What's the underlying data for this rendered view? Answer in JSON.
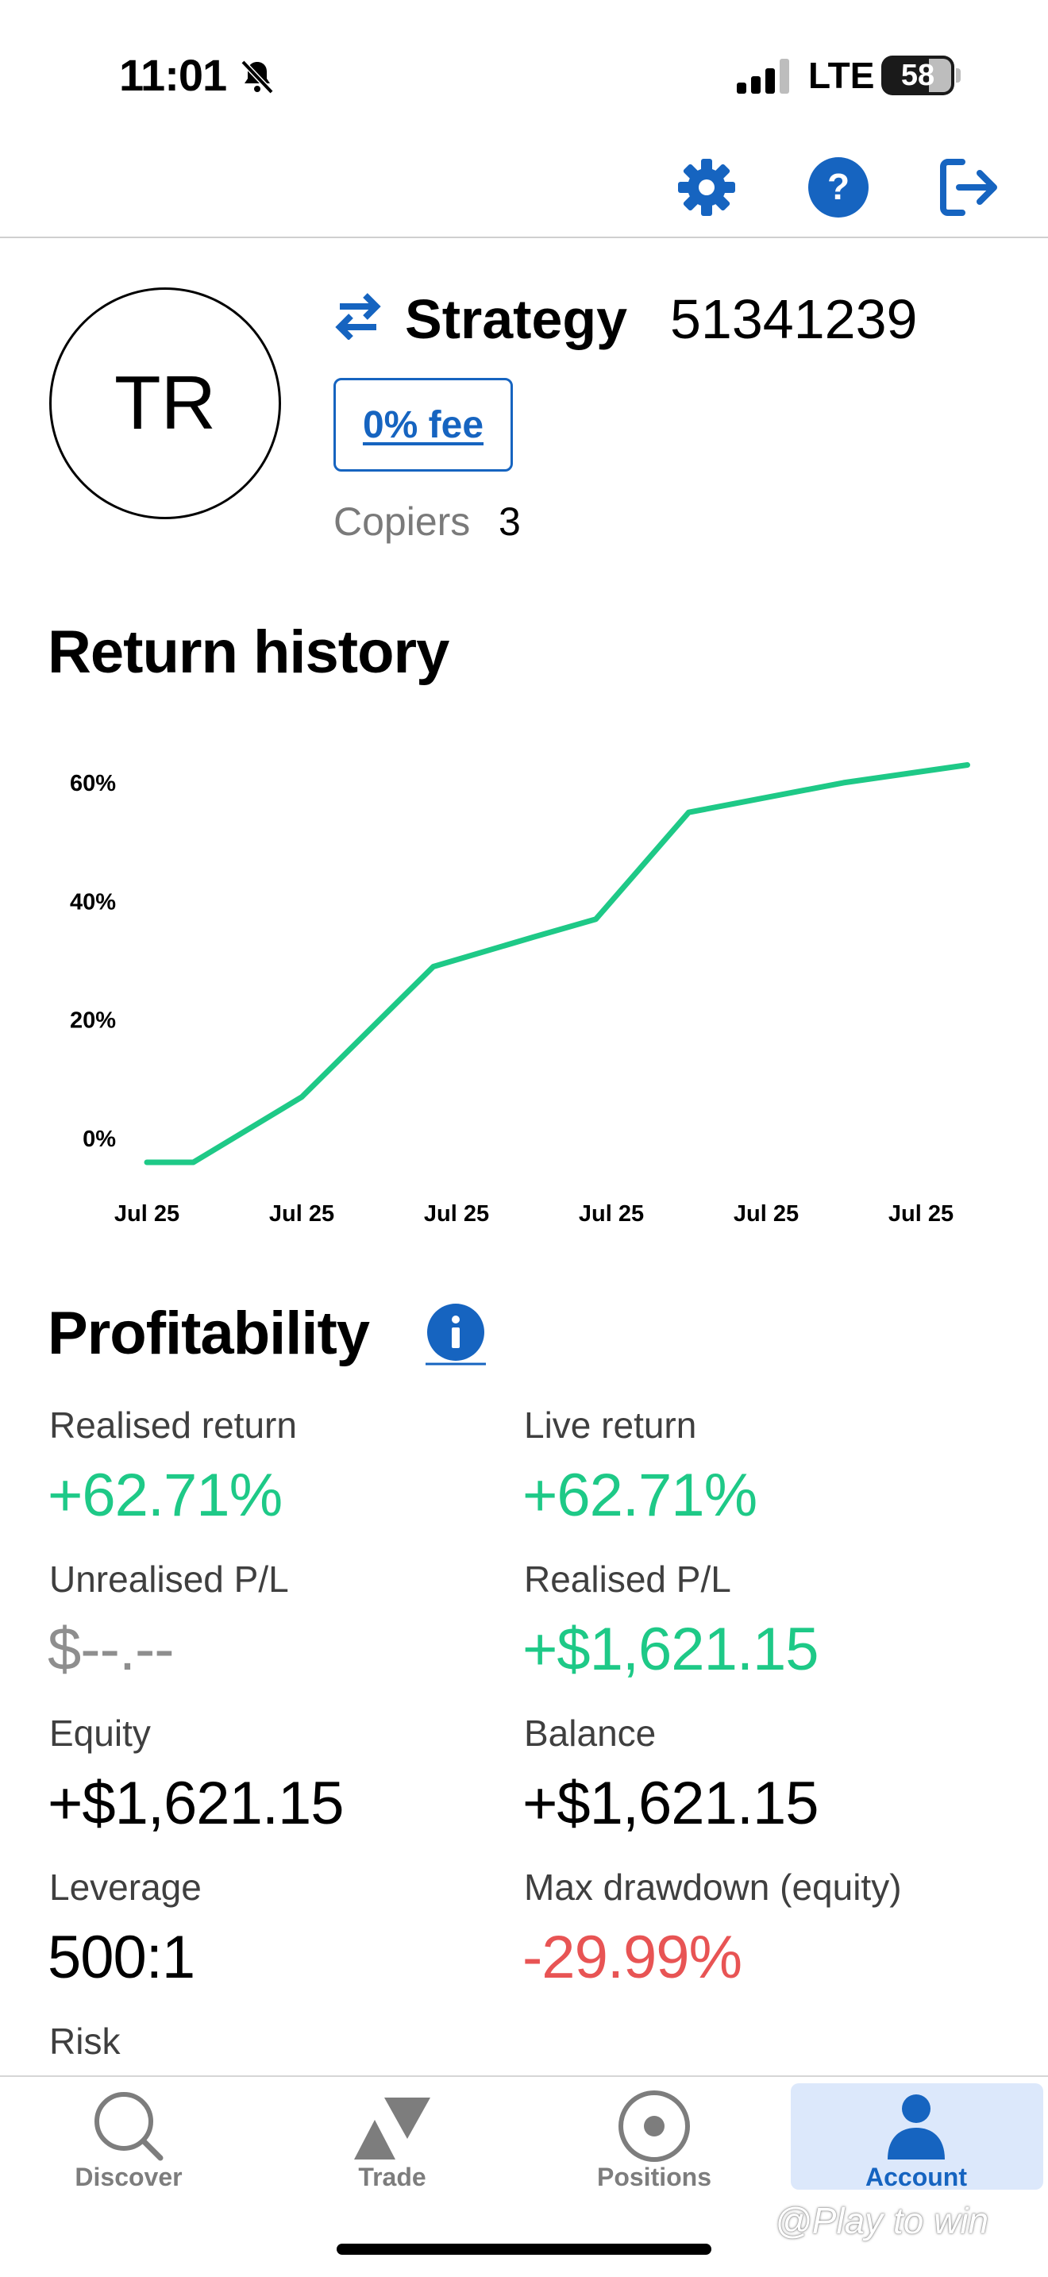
{
  "status_bar": {
    "time": "11:01",
    "network": "LTE",
    "battery_level": "58"
  },
  "header": {
    "icons": [
      "gear-icon",
      "help-icon",
      "logout-icon"
    ]
  },
  "profile": {
    "avatar_initials": "TR",
    "strategy_label": "Strategy",
    "strategy_id": "51341239",
    "fee_label": "0% fee",
    "copiers_label": "Copiers",
    "copiers_count": "3"
  },
  "return_history": {
    "title": "Return history"
  },
  "chart_data": {
    "type": "line",
    "title": "Return history",
    "y_tick_labels": [
      "60%",
      "40%",
      "20%",
      "0%"
    ],
    "x_tick_labels": [
      "Jul 25",
      "Jul 25",
      "Jul 25",
      "Jul 25",
      "Jul 25",
      "Jul 25"
    ],
    "ylim": [
      -4,
      64
    ],
    "series": [
      {
        "color": "#1ec987",
        "x_index": [
          0,
          0.3,
          1,
          1.85,
          2.5,
          2.9,
          3.5,
          4.5,
          5.3
        ],
        "values": [
          -4,
          -4,
          7,
          29,
          34,
          37,
          55,
          60,
          63
        ]
      }
    ],
    "grid": false
  },
  "profitability": {
    "title": "Profitability",
    "metrics": [
      {
        "label": "Realised return",
        "value": "+62.71%",
        "tone": "green"
      },
      {
        "label": "Live return",
        "value": "+62.71%",
        "tone": "green"
      },
      {
        "label": "Unrealised P/L",
        "value": "$--.--",
        "tone": "grey"
      },
      {
        "label": "Realised P/L",
        "value": "+$1,621.15",
        "tone": "green"
      },
      {
        "label": "Equity",
        "value": "+$1,621.15",
        "tone": "black"
      },
      {
        "label": "Balance",
        "value": "+$1,621.15",
        "tone": "black"
      },
      {
        "label": "Leverage",
        "value": "500:1",
        "tone": "black"
      },
      {
        "label": "Max drawdown (equity)",
        "value": "-29.99%",
        "tone": "red"
      },
      {
        "label": "Risk",
        "value": "",
        "tone": "black"
      }
    ]
  },
  "tabs": [
    {
      "label": "Discover",
      "icon": "search-icon",
      "active": false
    },
    {
      "label": "Trade",
      "icon": "trade-icon",
      "active": false
    },
    {
      "label": "Positions",
      "icon": "positions-icon",
      "active": false
    },
    {
      "label": "Account",
      "icon": "account-icon",
      "active": true
    }
  ],
  "colors": {
    "accent": "#1664c0",
    "positive": "#1ec987",
    "negative": "#e85454",
    "active_tab_bg": "#dce8fb"
  },
  "watermark": "@Play to win"
}
